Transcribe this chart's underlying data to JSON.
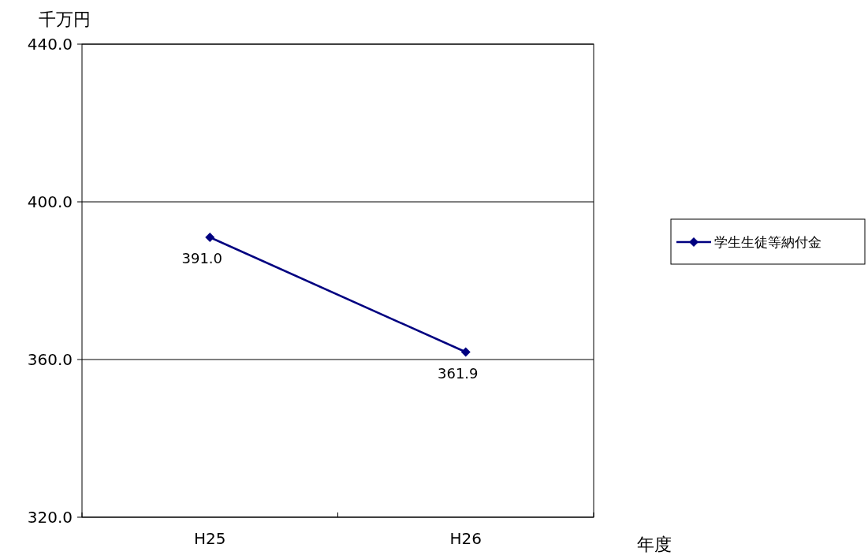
{
  "chart_data": {
    "type": "line",
    "ylabel": "千万円",
    "xlabel": "年度",
    "categories": [
      "H25",
      "H26"
    ],
    "series": [
      {
        "name": "学生生徒等納付金",
        "color": "#000080",
        "values": [
          391.0,
          361.9
        ],
        "value_labels": [
          "391.0",
          "361.9"
        ]
      }
    ],
    "ylim": [
      320,
      440
    ],
    "yticks": [
      {
        "value": 320,
        "label": "320.0"
      },
      {
        "value": 360,
        "label": "360.0"
      },
      {
        "value": 400,
        "label": "400.0"
      },
      {
        "value": 440,
        "label": "440.0"
      }
    ],
    "grid": "y",
    "legend": "right",
    "marker": "diamond",
    "line_style": "solid"
  }
}
